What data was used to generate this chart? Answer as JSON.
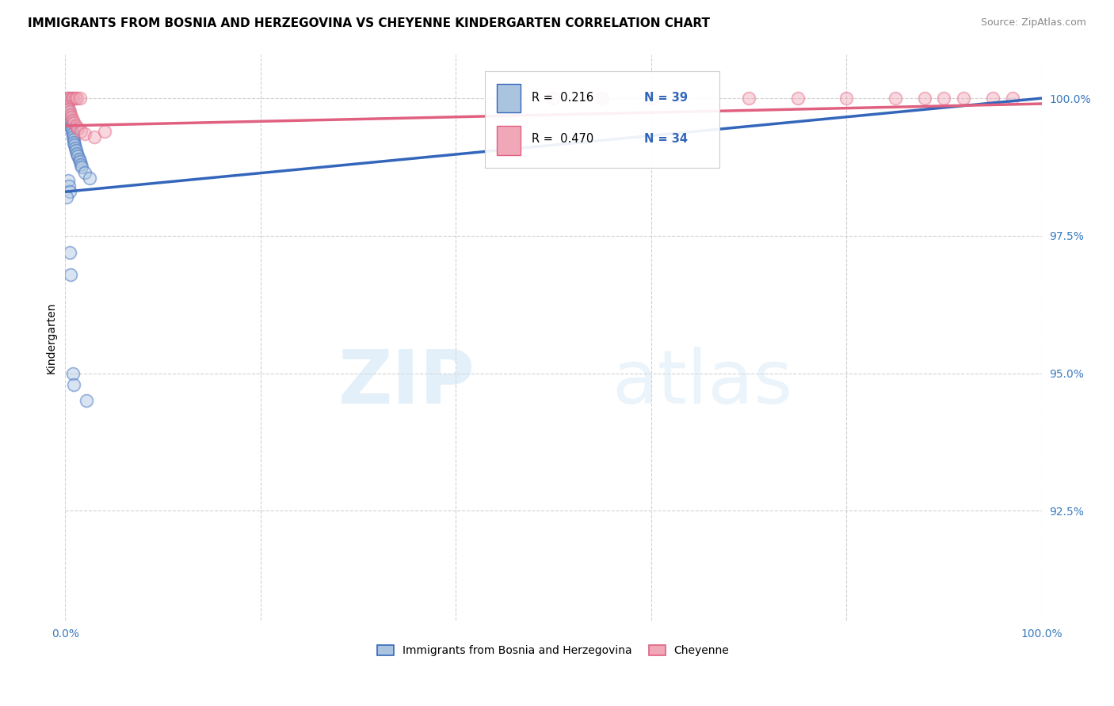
{
  "title": "IMMIGRANTS FROM BOSNIA AND HERZEGOVINA VS CHEYENNE KINDERGARTEN CORRELATION CHART",
  "source": "Source: ZipAtlas.com",
  "ylabel": "Kindergarten",
  "legend_blue_R": "0.216",
  "legend_blue_N": "39",
  "legend_pink_R": "0.470",
  "legend_pink_N": "34",
  "legend_label_blue": "Immigrants from Bosnia and Herzegovina",
  "legend_label_pink": "Cheyenne",
  "watermark_zip": "ZIP",
  "watermark_atlas": "atlas",
  "blue_color": "#aac4e0",
  "pink_color": "#f0a8b8",
  "blue_line_color": "#3366bb",
  "pink_line_color": "#e06080",
  "blue_scatter": [
    [
      0.15,
      99.85
    ],
    [
      0.2,
      99.9
    ],
    [
      0.25,
      99.8
    ],
    [
      0.3,
      99.75
    ],
    [
      0.35,
      99.7
    ],
    [
      0.4,
      99.65
    ],
    [
      0.5,
      99.6
    ],
    [
      0.55,
      99.55
    ],
    [
      0.6,
      99.5
    ],
    [
      0.65,
      99.45
    ],
    [
      0.7,
      99.4
    ],
    [
      0.75,
      99.35
    ],
    [
      0.8,
      99.3
    ],
    [
      0.85,
      99.25
    ],
    [
      0.9,
      99.2
    ],
    [
      0.95,
      99.15
    ],
    [
      1.0,
      99.1
    ],
    [
      1.1,
      99.05
    ],
    [
      1.2,
      99.0
    ],
    [
      1.3,
      98.95
    ],
    [
      1.4,
      98.9
    ],
    [
      1.5,
      98.85
    ],
    [
      1.6,
      98.8
    ],
    [
      1.7,
      98.75
    ],
    [
      2.0,
      98.65
    ],
    [
      2.5,
      98.55
    ],
    [
      0.3,
      98.5
    ],
    [
      0.4,
      98.4
    ],
    [
      0.5,
      98.3
    ],
    [
      0.1,
      98.2
    ],
    [
      0.5,
      97.2
    ],
    [
      0.55,
      96.8
    ],
    [
      0.8,
      95.0
    ],
    [
      0.85,
      94.8
    ],
    [
      2.2,
      94.5
    ],
    [
      0.05,
      99.95
    ],
    [
      0.1,
      99.92
    ],
    [
      0.12,
      99.88
    ],
    [
      0.18,
      99.82
    ]
  ],
  "pink_scatter": [
    [
      0.2,
      100.0
    ],
    [
      0.3,
      100.0
    ],
    [
      0.5,
      100.0
    ],
    [
      0.7,
      100.0
    ],
    [
      0.8,
      100.0
    ],
    [
      1.0,
      100.0
    ],
    [
      1.2,
      100.0
    ],
    [
      1.5,
      100.0
    ],
    [
      0.25,
      99.85
    ],
    [
      0.35,
      99.8
    ],
    [
      0.45,
      99.75
    ],
    [
      0.55,
      99.7
    ],
    [
      0.65,
      99.65
    ],
    [
      0.75,
      99.6
    ],
    [
      0.9,
      99.55
    ],
    [
      1.1,
      99.5
    ],
    [
      1.3,
      99.45
    ],
    [
      1.6,
      99.4
    ],
    [
      2.0,
      99.35
    ],
    [
      3.0,
      99.3
    ],
    [
      4.0,
      99.4
    ],
    [
      45.0,
      100.0
    ],
    [
      50.0,
      100.0
    ],
    [
      55.0,
      100.0
    ],
    [
      60.0,
      100.0
    ],
    [
      70.0,
      100.0
    ],
    [
      75.0,
      100.0
    ],
    [
      80.0,
      100.0
    ],
    [
      85.0,
      100.0
    ],
    [
      88.0,
      100.0
    ],
    [
      90.0,
      100.0
    ],
    [
      92.0,
      100.0
    ],
    [
      95.0,
      100.0
    ],
    [
      97.0,
      100.0
    ]
  ],
  "blue_trend": [
    0.0,
    100.0,
    98.3,
    100.0
  ],
  "pink_trend": [
    0.0,
    100.0,
    99.5,
    99.9
  ],
  "xlim": [
    0,
    100
  ],
  "ylim": [
    90.5,
    100.8
  ],
  "y_ticks": [
    92.5,
    95.0,
    97.5,
    100.0
  ],
  "x_tick_positions": [
    0,
    20,
    40,
    60,
    80,
    100
  ],
  "grid_color": "#cccccc",
  "background_color": "#ffffff",
  "title_fontsize": 11,
  "legend_fontsize": 11,
  "source_fontsize": 9,
  "right_label_color": "#3a7abf",
  "marker_size": 130,
  "marker_alpha": 0.45,
  "marker_linewidth": 1.3
}
